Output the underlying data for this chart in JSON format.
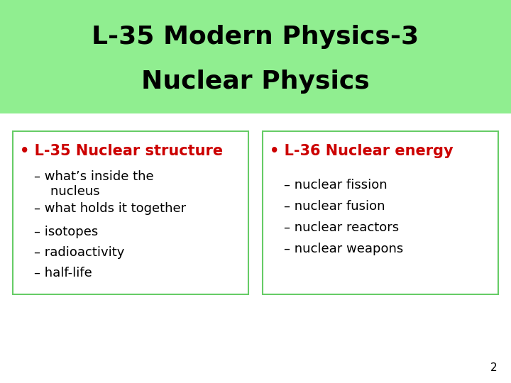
{
  "title_line1": "L-35 Modern Physics-3",
  "title_line2": "Nuclear Physics",
  "title_bg_color": "#90EE90",
  "title_font_size": 26,
  "title_text_color": "#000000",
  "body_bg_color": "#FFFFFF",
  "box_border_color": "#66CC66",
  "left_box": {
    "bullet_text": "L-35 Nuclear structure",
    "bullet_color": "#CC0000",
    "bullet_font_size": 15,
    "items": [
      "what’s inside the\n    nucleus",
      "what holds it together",
      "isotopes",
      "radioactivity",
      "half-life"
    ],
    "item_color": "#000000",
    "item_font_size": 13
  },
  "right_box": {
    "bullet_text": "L-36 Nuclear energy",
    "bullet_color": "#CC0000",
    "bullet_font_size": 15,
    "items": [
      "nuclear fission",
      "nuclear fusion",
      "nuclear reactors",
      "nuclear weapons"
    ],
    "item_color": "#000000",
    "item_font_size": 13
  },
  "page_number": "2",
  "page_num_color": "#000000",
  "page_num_font_size": 11
}
